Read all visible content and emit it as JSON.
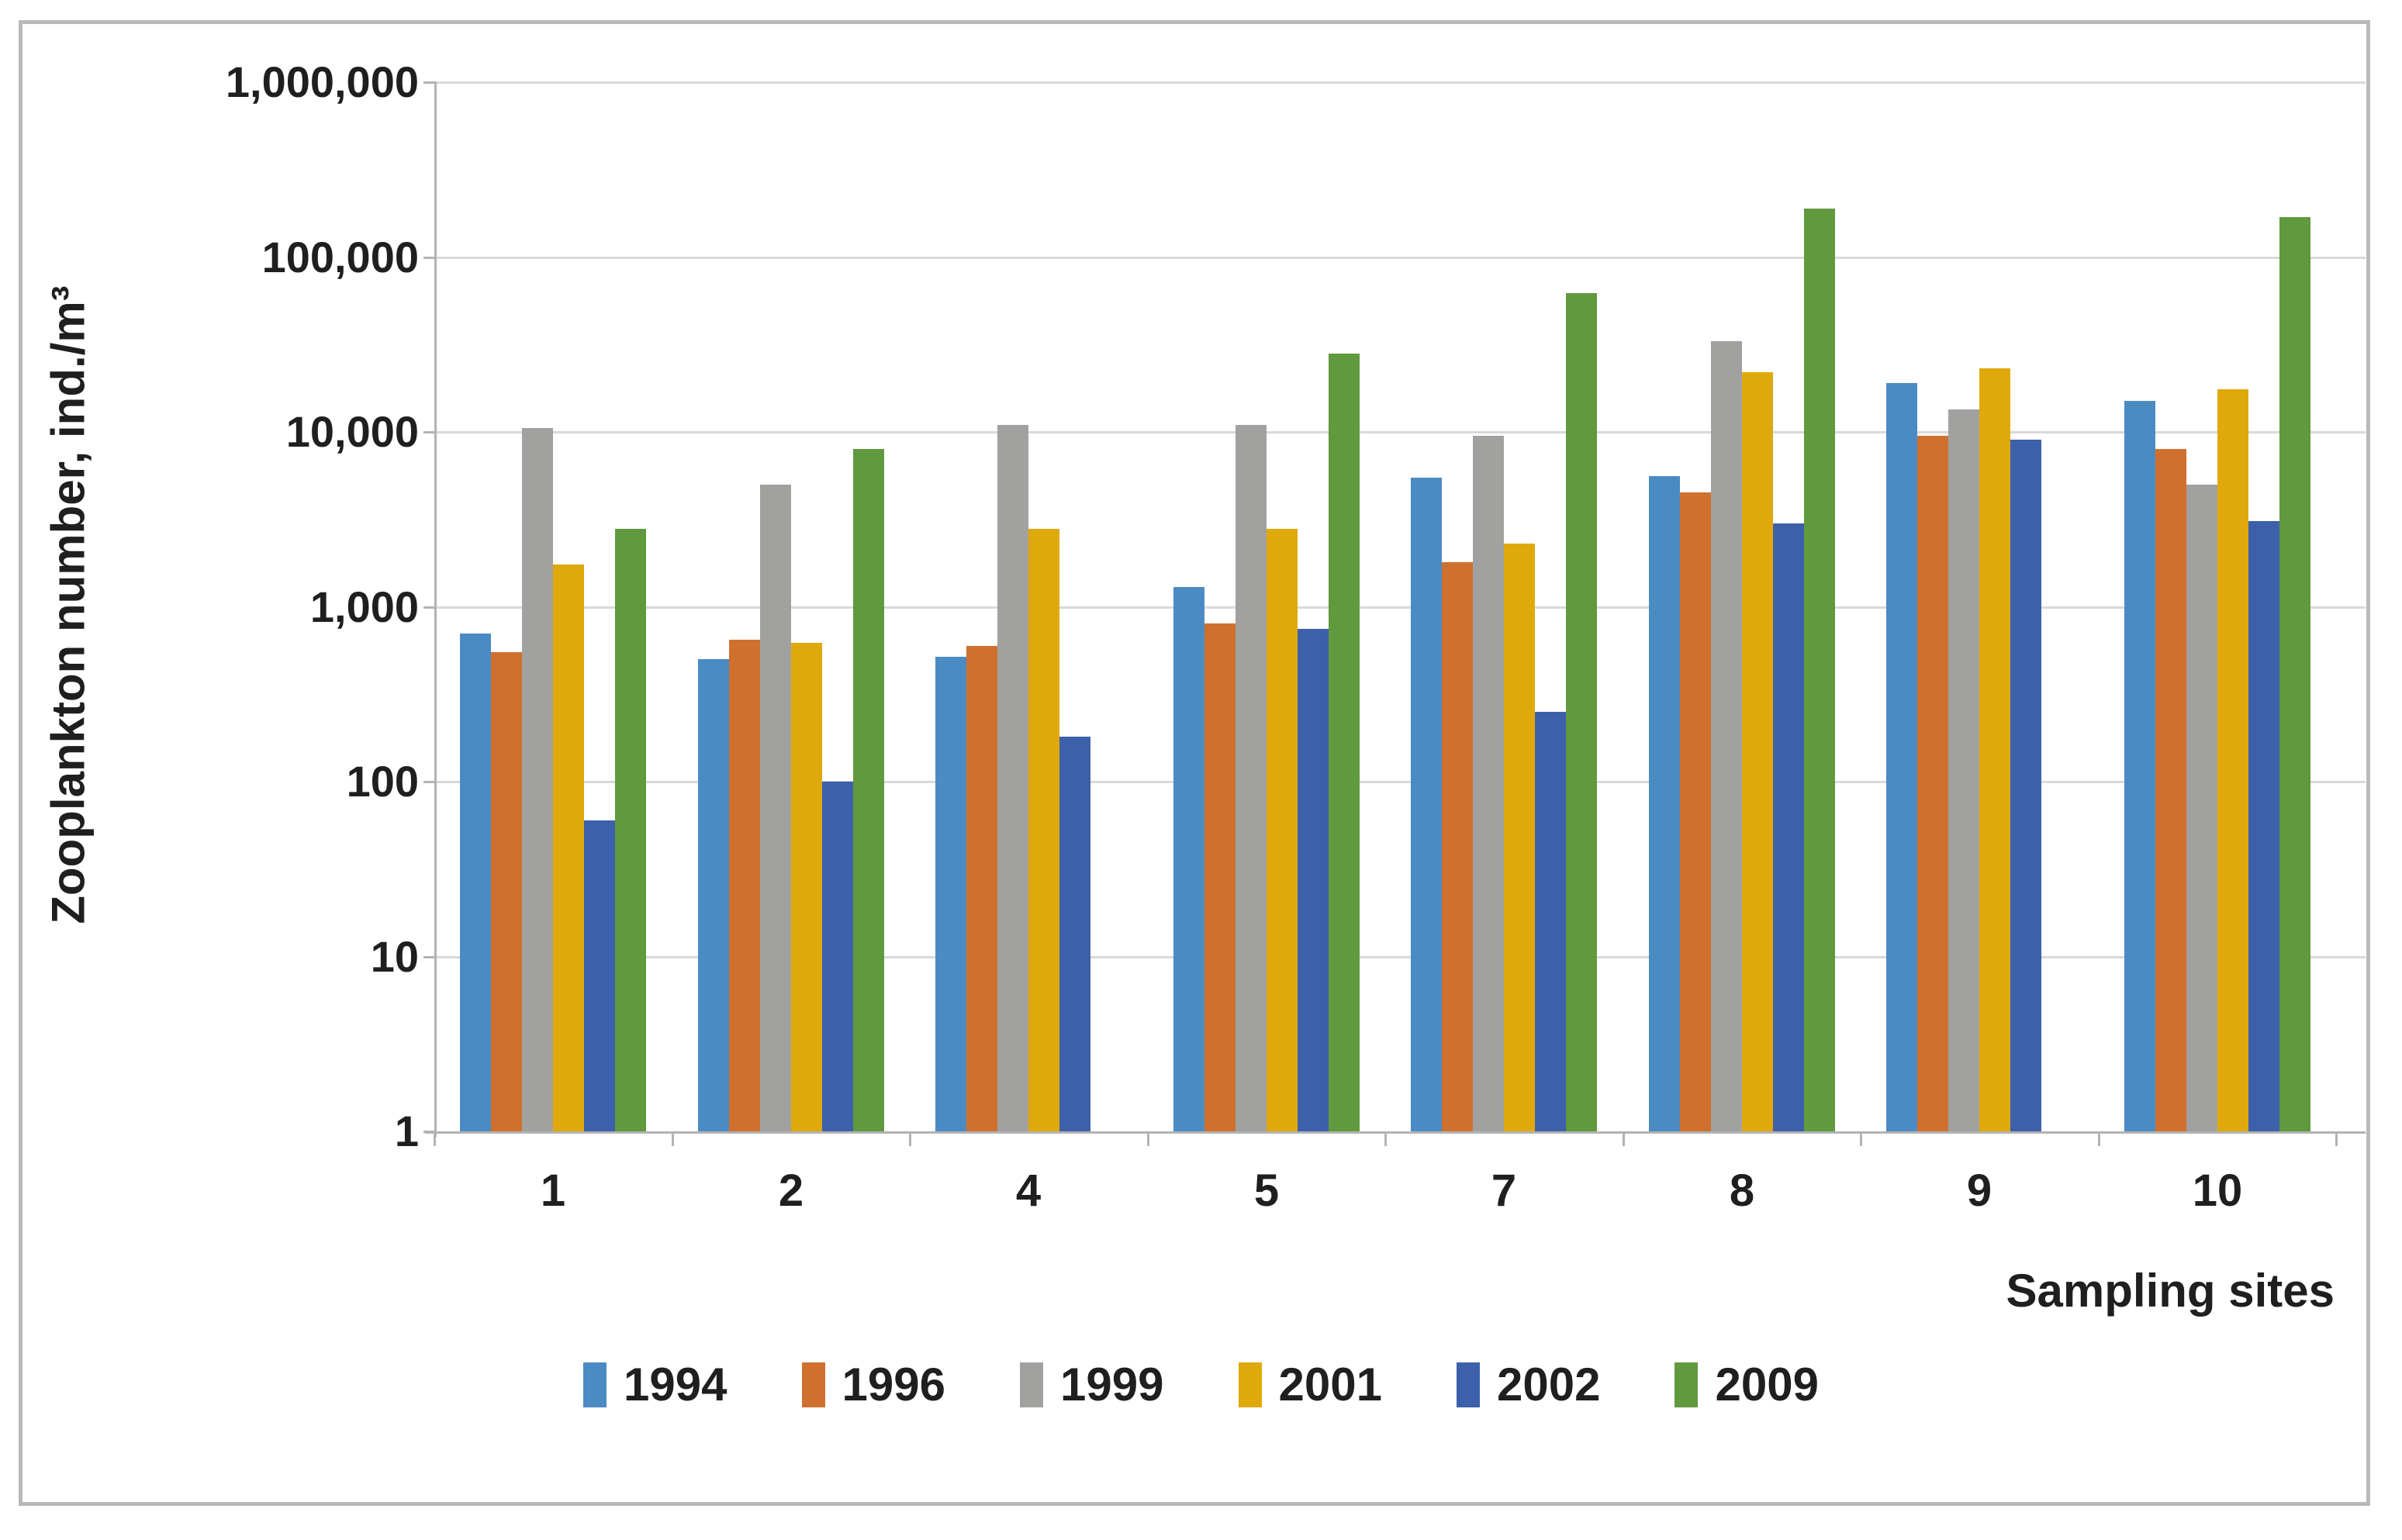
{
  "chart_data": {
    "type": "bar",
    "title": "",
    "ylabel": "Zooplankton number, ind./m³",
    "xlabel": "Sampling sites",
    "y_scale": "log10",
    "ylim": [
      1,
      1000000
    ],
    "grid": true,
    "legend_position": "bottom",
    "y_ticks": [
      {
        "value": 1000000,
        "label": "1,000,000"
      },
      {
        "value": 100000,
        "label": "100,000"
      },
      {
        "value": 10000,
        "label": "10,000"
      },
      {
        "value": 1000,
        "label": "1,000"
      },
      {
        "value": 100,
        "label": "100"
      },
      {
        "value": 10,
        "label": "10"
      },
      {
        "value": 1,
        "label": "1"
      }
    ],
    "categories": [
      "1",
      "2",
      "4",
      "5",
      "7",
      "8",
      "9",
      "10"
    ],
    "series": [
      {
        "name": "1994",
        "color": "#4b8bc4",
        "values": [
          700,
          500,
          520,
          1300,
          5500,
          5600,
          19000,
          15000
        ]
      },
      {
        "name": "1996",
        "color": "#d0702f",
        "values": [
          550,
          650,
          600,
          800,
          1800,
          4500,
          9500,
          8000
        ]
      },
      {
        "name": "1999",
        "color": "#a1a19f",
        "values": [
          10500,
          5000,
          11000,
          11000,
          9500,
          33000,
          13500,
          5000
        ]
      },
      {
        "name": "2001",
        "color": "#e0a90b",
        "values": [
          1750,
          620,
          2800,
          2800,
          2300,
          22000,
          23000,
          17500
        ]
      },
      {
        "name": "2002",
        "color": "#3d60ab",
        "values": [
          60,
          100,
          180,
          750,
          250,
          3000,
          9000,
          3100
        ]
      },
      {
        "name": "2009",
        "color": "#61993e",
        "values": [
          2800,
          8000,
          null,
          28000,
          62000,
          190000,
          null,
          170000
        ]
      }
    ],
    "colors": {
      "gridline": "#d9d9d9",
      "axis_line": "#b3b3b3",
      "chart_border": "#b9b9b9",
      "text": "#1f1f1f",
      "background": "#ffffff"
    }
  }
}
